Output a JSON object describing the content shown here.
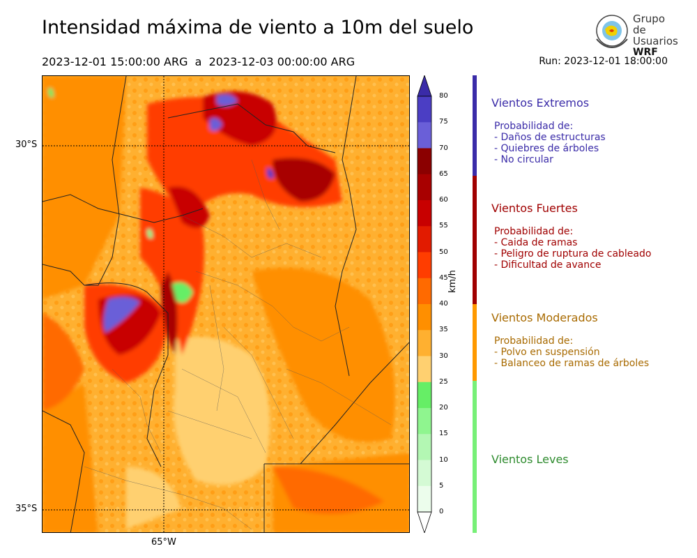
{
  "header": {
    "title": "Intensidad máxima de viento a 10m del suelo",
    "period": "2023-12-01 15:00:00 ARG  a  2023-12-03 00:00:00 ARG",
    "run": "Run: 2023-12-01 18:00:00"
  },
  "logo": {
    "line1": "Grupo de",
    "line2": "Usuarios",
    "line3": "WRF"
  },
  "map": {
    "lat_labels": [
      "30°S",
      "35°S"
    ],
    "lon_labels": [
      "65°W"
    ]
  },
  "colorbar": {
    "unit": "km/h",
    "ticks": [
      "80",
      "75",
      "70",
      "65",
      "60",
      "55",
      "50",
      "45",
      "40",
      "35",
      "30",
      "25",
      "20",
      "15",
      "10",
      "5",
      "0"
    ],
    "colors": [
      "#3a2ba8",
      "#4b3ec4",
      "#6a5fd8",
      "#8b0000",
      "#a80000",
      "#c80000",
      "#e21b00",
      "#ff3d00",
      "#ff6a00",
      "#ff8f00",
      "#ffb030",
      "#ffd070",
      "#66ee66",
      "#8ff58f",
      "#b3f7b3",
      "#d4fad4",
      "#ecfdec"
    ]
  },
  "categories": [
    {
      "title": "Vientos Extremos",
      "color": "#3a2ba8",
      "desc": [
        " Probabilidad de:",
        " - Daños de estructuras",
        " - Quiebres de árboles",
        " - No circular"
      ]
    },
    {
      "title": "Vientos Fuertes",
      "color": "#a00000",
      "desc": [
        " Probabilidad de:",
        " - Caida de ramas",
        " - Peligro de ruptura de cableado",
        " - Dificultad de avance"
      ]
    },
    {
      "title": "Vientos Moderados",
      "color": "#a86a00",
      "desc": [
        " Probabilidad de:",
        " - Polvo en suspensión",
        " - Balanceo de ramas de árboles"
      ]
    },
    {
      "title": "Vientos Leves",
      "color": "#2e8b2e",
      "desc": []
    }
  ]
}
